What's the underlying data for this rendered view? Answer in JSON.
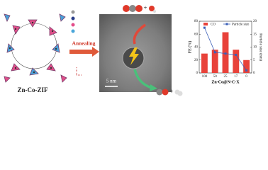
{
  "figure": {
    "structure_label": "Zn-Co-ZIF",
    "arrow_label": "Annealing",
    "scale_bar": "5 nm"
  },
  "chart_data": {
    "type": "bar",
    "xlabel": "Zn-Co@N-C-X",
    "ylabel": "FE (%)",
    "y2label": "Particle size (nm)",
    "categories": [
      "100",
      "50",
      "25",
      "17",
      "0"
    ],
    "series": [
      {
        "name": "CO",
        "color": "#e8423a",
        "type": "bar",
        "values": [
          30,
          36,
          63,
          36,
          20
        ]
      },
      {
        "name": "Particle size",
        "color": "#3a5fb8",
        "type": "line",
        "axis": "y2",
        "values": [
          17.5,
          8,
          7.5,
          7,
          1
        ]
      }
    ],
    "ylim": [
      0,
      80
    ],
    "yticks": [
      0,
      20,
      40,
      60,
      80
    ],
    "y2lim": [
      0,
      20
    ],
    "y2ticks": [
      0,
      5,
      10,
      15,
      20
    ]
  }
}
